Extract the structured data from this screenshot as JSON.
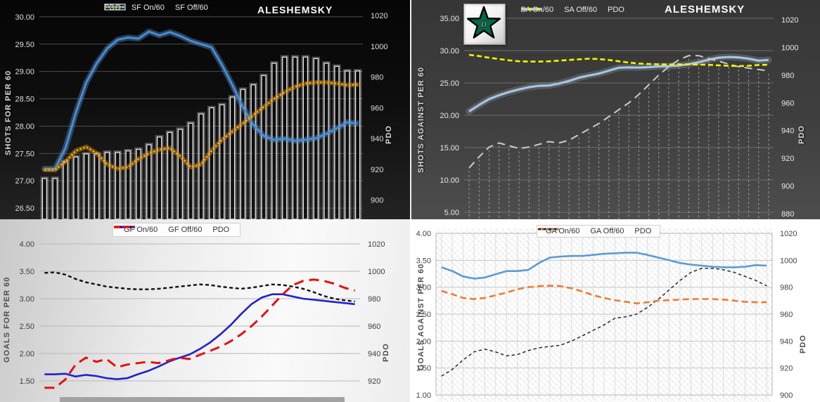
{
  "player": "ALESHEMSKY",
  "logo": {
    "name": "dallas-stars-logo",
    "star_color": "#006847"
  },
  "chart_data": [
    {
      "id": "shots_for",
      "type": "line",
      "title": "ALESHEMSKY",
      "ylabel_left": "SHOTS FOR PER 60",
      "ylabel_right": "PDO",
      "points": 31,
      "left_axis": {
        "ticks": [
          30.0,
          29.5,
          29.0,
          28.5,
          28.0,
          27.5,
          27.0,
          26.5
        ],
        "decimals": 2,
        "range": [
          26.5,
          30.0
        ]
      },
      "right_axis": {
        "ticks": [
          1020,
          1000,
          980,
          960,
          940,
          920,
          900
        ],
        "decimals": 0,
        "range": [
          900,
          1020
        ]
      },
      "series": [
        {
          "name": "PDO",
          "kind": "bar",
          "axis": "right",
          "z": 1,
          "color": "#ededed",
          "fill": "rgba(8,8,8,0.55)",
          "glow": "rgba(255,255,255,0.3)",
          "values": [
            914,
            914,
            925,
            928,
            930,
            930,
            931,
            931,
            932,
            933,
            936,
            941,
            944,
            946,
            950,
            956,
            960,
            962,
            967,
            972,
            975,
            981,
            989,
            993,
            993,
            993,
            992,
            989,
            987,
            984,
            984
          ]
        },
        {
          "name": "SF On/60",
          "kind": "line",
          "axis": "left",
          "z": 2,
          "color": "#4a8fd4",
          "width": 2.8,
          "glow": "rgba(90,155,225,0.38)",
          "values": [
            27.22,
            27.22,
            27.6,
            28.25,
            28.8,
            29.15,
            29.42,
            29.58,
            29.62,
            29.6,
            29.73,
            29.66,
            29.72,
            29.65,
            29.56,
            29.5,
            29.44,
            29.12,
            28.75,
            28.35,
            28.02,
            27.82,
            27.75,
            27.77,
            27.73,
            27.75,
            27.78,
            27.86,
            27.96,
            28.07,
            28.05
          ]
        },
        {
          "name": "SF Off/60",
          "kind": "line",
          "axis": "left",
          "z": 3,
          "color": "#e4c418",
          "width": 2.2,
          "dash": "2.5 2.6",
          "legend_dash": "2.5 2.5",
          "glow": "rgba(214,126,13,0.5)",
          "values": [
            27.2,
            27.2,
            27.35,
            27.55,
            27.62,
            27.5,
            27.3,
            27.22,
            27.25,
            27.4,
            27.5,
            27.57,
            27.6,
            27.45,
            27.25,
            27.3,
            27.55,
            27.75,
            27.9,
            28.05,
            28.2,
            28.35,
            28.5,
            28.62,
            28.72,
            28.78,
            28.8,
            28.8,
            28.78,
            28.75,
            28.76
          ]
        }
      ]
    },
    {
      "id": "shots_against",
      "type": "line",
      "title": "ALESHEMSKY",
      "ylabel_left": "SHOTS AGAINST PER 60",
      "ylabel_right": "PDO",
      "points": 31,
      "left_axis": {
        "ticks": [
          35.0,
          30.0,
          25.0,
          20.0,
          15.0,
          10.0,
          5.0
        ],
        "decimals": 2,
        "range": [
          5.0,
          35.0
        ]
      },
      "right_axis": {
        "ticks": [
          1020,
          1000,
          980,
          960,
          940,
          920,
          900,
          880
        ],
        "decimals": 0,
        "range": [
          880,
          1020
        ]
      },
      "series": [
        {
          "name": "SA On/60",
          "kind": "line",
          "axis": "left",
          "z": 2,
          "color": "#a3c6e8",
          "width": 3.2,
          "glow": "rgba(255,255,255,0.15)",
          "values": [
            20.6,
            21.6,
            22.5,
            23.1,
            23.6,
            24.0,
            24.35,
            24.55,
            24.6,
            24.9,
            25.3,
            25.8,
            26.15,
            26.45,
            26.9,
            27.35,
            27.4,
            27.38,
            27.45,
            27.55,
            27.6,
            27.7,
            27.9,
            28.2,
            28.6,
            28.9,
            29.0,
            28.95,
            28.75,
            28.45,
            28.55
          ]
        },
        {
          "name": "SA Off/60",
          "kind": "line",
          "axis": "left",
          "z": 4,
          "color": "#f4f400",
          "width": 2.6,
          "dash": "7 4",
          "legend_dash": "6 4",
          "values": [
            29.35,
            29.15,
            28.9,
            28.7,
            28.5,
            28.35,
            28.3,
            28.3,
            28.35,
            28.45,
            28.55,
            28.65,
            28.75,
            28.7,
            28.55,
            28.35,
            28.15,
            28.0,
            27.92,
            27.88,
            27.85,
            27.86,
            27.88,
            27.85,
            27.8,
            27.72,
            27.65,
            27.6,
            27.65,
            27.78,
            27.8
          ]
        },
        {
          "name": "PDO",
          "kind": "line",
          "axis": "right",
          "z": 3,
          "color": "#cccccc",
          "width": 2,
          "dash": "11 7",
          "legend_dash": "8 6",
          "drops": true,
          "values": [
            913,
            921,
            928,
            931,
            929,
            927,
            928,
            930,
            932,
            931,
            933,
            937,
            941,
            945,
            950,
            955,
            960,
            966,
            973,
            980,
            986,
            991,
            994,
            994,
            992,
            990,
            988,
            986,
            985,
            984,
            983
          ]
        }
      ]
    },
    {
      "id": "goals_for",
      "type": "line",
      "title": "",
      "ylabel_left": "GOALS FOR PER 60",
      "ylabel_right": "PDO",
      "points": 31,
      "left_axis": {
        "ticks": [
          4.0,
          3.5,
          3.0,
          2.5,
          2.0,
          1.5
        ],
        "decimals": 2,
        "range": [
          1.5,
          4.0
        ]
      },
      "right_axis": {
        "ticks": [
          1020,
          1000,
          980,
          960,
          940,
          920
        ],
        "decimals": 0,
        "range": [
          920,
          1020
        ]
      },
      "series": [
        {
          "name": "GF On/60",
          "kind": "line",
          "axis": "left",
          "z": 2,
          "color": "#2121cd",
          "width": 2.6,
          "values": [
            1.62,
            1.62,
            1.63,
            1.58,
            1.61,
            1.59,
            1.55,
            1.53,
            1.55,
            1.62,
            1.68,
            1.76,
            1.85,
            1.92,
            1.98,
            2.08,
            2.2,
            2.35,
            2.52,
            2.72,
            2.9,
            3.02,
            3.08,
            3.08,
            3.04,
            3.0,
            2.98,
            2.96,
            2.94,
            2.92,
            2.9
          ]
        },
        {
          "name": "GF Off/60",
          "kind": "line",
          "axis": "left",
          "z": 3,
          "color": "#101010",
          "width": 2.4,
          "dash": "5 3.6",
          "legend_dash": "4 3",
          "values": [
            3.47,
            3.48,
            3.44,
            3.36,
            3.3,
            3.26,
            3.22,
            3.2,
            3.18,
            3.17,
            3.17,
            3.18,
            3.2,
            3.22,
            3.24,
            3.26,
            3.25,
            3.22,
            3.2,
            3.18,
            3.2,
            3.23,
            3.26,
            3.25,
            3.22,
            3.18,
            3.12,
            3.05,
            3.0,
            2.97,
            2.95
          ]
        },
        {
          "name": "PDO",
          "kind": "line",
          "axis": "right",
          "z": 4,
          "color": "#e51010",
          "width": 3,
          "dash": "14 8",
          "legend_dash": "9 5",
          "values": [
            915,
            915,
            921,
            932,
            937,
            934,
            936,
            930,
            932,
            933,
            934,
            933,
            935,
            937,
            936,
            939,
            942,
            945,
            949,
            954,
            960,
            967,
            975,
            983,
            990,
            993,
            994,
            993,
            991,
            988,
            986
          ]
        }
      ]
    },
    {
      "id": "goals_against",
      "type": "line",
      "title": "",
      "ylabel_left": "GOALS AGAINST PER 60",
      "ylabel_right": "PDO",
      "points": 31,
      "left_axis": {
        "ticks": [
          4.0,
          3.5,
          3.0,
          2.5,
          2.0,
          1.5,
          1.0
        ],
        "decimals": 2,
        "range": [
          1.0,
          4.0
        ]
      },
      "right_axis": {
        "ticks": [
          1020,
          1000,
          980,
          960,
          940,
          920,
          900
        ],
        "decimals": 0,
        "range": [
          900,
          1020
        ]
      },
      "series": [
        {
          "name": "GA On/60",
          "kind": "line",
          "axis": "left",
          "z": 4,
          "color": "#5b9bd5",
          "width": 2.6,
          "values": [
            3.37,
            3.3,
            3.2,
            3.16,
            3.18,
            3.24,
            3.3,
            3.3,
            3.32,
            3.45,
            3.55,
            3.57,
            3.58,
            3.58,
            3.6,
            3.62,
            3.63,
            3.64,
            3.64,
            3.6,
            3.55,
            3.5,
            3.45,
            3.42,
            3.4,
            3.38,
            3.37,
            3.37,
            3.38,
            3.41,
            3.4
          ]
        },
        {
          "name": "GA Off/60",
          "kind": "line",
          "axis": "left",
          "z": 3,
          "color": "#ed7d31",
          "width": 2.6,
          "dash": "9 5",
          "legend_dash": "7 4",
          "values": [
            2.93,
            2.87,
            2.8,
            2.78,
            2.8,
            2.85,
            2.9,
            2.96,
            3.0,
            3.02,
            3.03,
            3.02,
            2.98,
            2.92,
            2.85,
            2.8,
            2.76,
            2.73,
            2.7,
            2.72,
            2.75,
            2.76,
            2.77,
            2.78,
            2.78,
            2.78,
            2.77,
            2.75,
            2.73,
            2.72,
            2.72
          ]
        },
        {
          "name": "PDO",
          "kind": "line",
          "axis": "right",
          "z": 2,
          "color": "#1c1c1c",
          "width": 1.4,
          "dash": "4.5 3.6",
          "legend_dash": "4 3.5",
          "values": [
            914,
            919,
            926,
            932,
            934,
            932,
            929,
            930,
            933,
            935,
            936,
            937,
            940,
            944,
            948,
            952,
            957,
            958,
            960,
            965,
            971,
            978,
            985,
            991,
            994,
            994,
            993,
            991,
            988,
            985,
            981
          ]
        }
      ]
    }
  ]
}
